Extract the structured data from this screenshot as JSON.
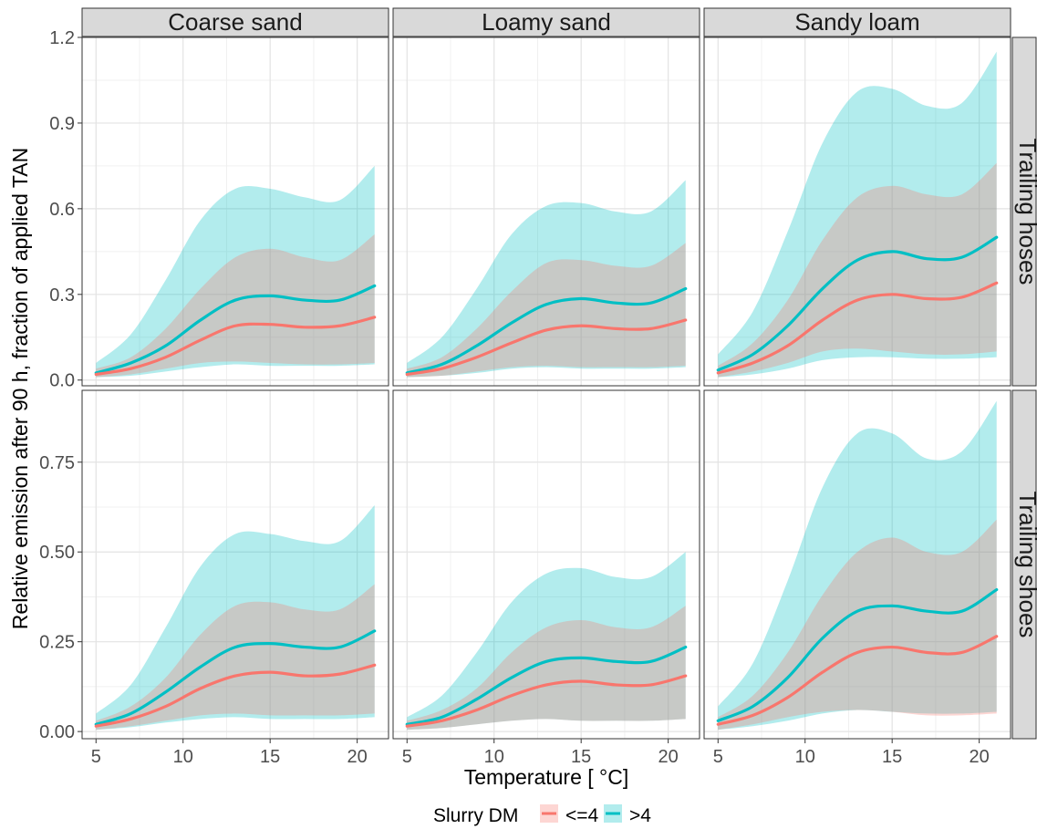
{
  "chart_data": {
    "type": "area",
    "title": "",
    "xlabel": "Temperature [ °C]",
    "ylabel": "Relative emission after 90 h, fraction of applied TAN",
    "x_ticks": [
      5,
      10,
      15,
      20
    ],
    "xlim": [
      4.2,
      21.8
    ],
    "columns": [
      "Coarse sand",
      "Loamy sand",
      "Sandy loam"
    ],
    "rows": [
      {
        "label": "Trailing hoses",
        "ylim": [
          -0.02,
          1.2
        ],
        "y_ticks": [
          0.0,
          0.3,
          0.6,
          0.9,
          1.2
        ],
        "y_tick_labels": [
          "0.0",
          "0.3",
          "0.6",
          "0.9",
          "1.2"
        ]
      },
      {
        "label": "Trailing shoes",
        "ylim": [
          -0.02,
          0.95
        ],
        "y_ticks": [
          0.0,
          0.25,
          0.5,
          0.75
        ],
        "y_tick_labels": [
          "0.00",
          "0.25",
          "0.50",
          "0.75"
        ]
      }
    ],
    "legend": {
      "title": "Slurry DM",
      "position": "bottom",
      "entries": [
        {
          "label": "<=4",
          "line_color": "#F8766D",
          "band_color": "#F8766D"
        },
        {
          "label": ">4",
          "line_color": "#00BFC4",
          "band_color": "#00BFC4"
        }
      ]
    },
    "x": [
      5,
      7,
      9,
      11,
      13,
      15,
      17,
      19,
      21
    ],
    "panels": [
      {
        "row": "Trailing hoses",
        "column": "Coarse sand",
        "series": [
          {
            "name": "<=4",
            "mean": [
              0.02,
              0.04,
              0.08,
              0.14,
              0.19,
              0.195,
              0.185,
              0.19,
              0.22
            ],
            "lower": [
              0.01,
              0.02,
              0.04,
              0.06,
              0.065,
              0.06,
              0.055,
              0.055,
              0.06
            ],
            "upper": [
              0.04,
              0.08,
              0.18,
              0.32,
              0.43,
              0.46,
              0.43,
              0.42,
              0.51
            ]
          },
          {
            "name": ">4",
            "mean": [
              0.025,
              0.06,
              0.12,
              0.21,
              0.28,
              0.295,
              0.28,
              0.28,
              0.33
            ],
            "lower": [
              0.01,
              0.015,
              0.03,
              0.045,
              0.055,
              0.05,
              0.05,
              0.05,
              0.055
            ],
            "upper": [
              0.06,
              0.16,
              0.35,
              0.56,
              0.67,
              0.67,
              0.64,
              0.63,
              0.75
            ]
          }
        ]
      },
      {
        "row": "Trailing hoses",
        "column": "Loamy sand",
        "series": [
          {
            "name": "<=4",
            "mean": [
              0.02,
              0.04,
              0.08,
              0.13,
              0.175,
              0.19,
              0.18,
              0.18,
              0.21
            ],
            "lower": [
              0.01,
              0.015,
              0.03,
              0.045,
              0.05,
              0.045,
              0.045,
              0.045,
              0.05
            ],
            "upper": [
              0.04,
              0.08,
              0.18,
              0.31,
              0.41,
              0.42,
              0.4,
              0.4,
              0.48
            ]
          },
          {
            "name": ">4",
            "mean": [
              0.025,
              0.055,
              0.12,
              0.2,
              0.265,
              0.285,
              0.27,
              0.27,
              0.32
            ],
            "lower": [
              0.01,
              0.015,
              0.025,
              0.04,
              0.045,
              0.04,
              0.04,
              0.04,
              0.045
            ],
            "upper": [
              0.06,
              0.15,
              0.32,
              0.51,
              0.61,
              0.62,
              0.59,
              0.59,
              0.7
            ]
          }
        ]
      },
      {
        "row": "Trailing hoses",
        "column": "Sandy loam",
        "series": [
          {
            "name": "<=4",
            "mean": [
              0.025,
              0.06,
              0.12,
              0.21,
              0.28,
              0.3,
              0.285,
              0.29,
              0.34
            ],
            "lower": [
              0.01,
              0.03,
              0.06,
              0.1,
              0.11,
              0.1,
              0.09,
              0.09,
              0.1
            ],
            "upper": [
              0.05,
              0.13,
              0.28,
              0.49,
              0.64,
              0.68,
              0.65,
              0.65,
              0.76
            ]
          },
          {
            "name": ">4",
            "mean": [
              0.035,
              0.09,
              0.19,
              0.32,
              0.42,
              0.45,
              0.425,
              0.43,
              0.5
            ],
            "lower": [
              0.01,
              0.02,
              0.04,
              0.07,
              0.08,
              0.08,
              0.075,
              0.075,
              0.08
            ],
            "upper": [
              0.09,
              0.24,
              0.52,
              0.83,
              1.01,
              1.02,
              0.96,
              0.97,
              1.15
            ]
          }
        ]
      },
      {
        "row": "Trailing shoes",
        "column": "Coarse sand",
        "series": [
          {
            "name": "<=4",
            "mean": [
              0.015,
              0.035,
              0.07,
              0.12,
              0.155,
              0.165,
              0.155,
              0.16,
              0.185
            ],
            "lower": [
              0.005,
              0.015,
              0.03,
              0.045,
              0.05,
              0.045,
              0.045,
              0.045,
              0.05
            ],
            "upper": [
              0.03,
              0.07,
              0.15,
              0.27,
              0.35,
              0.36,
              0.34,
              0.34,
              0.41
            ]
          },
          {
            "name": ">4",
            "mean": [
              0.02,
              0.05,
              0.11,
              0.18,
              0.235,
              0.245,
              0.235,
              0.235,
              0.28
            ],
            "lower": [
              0.005,
              0.012,
              0.025,
              0.035,
              0.04,
              0.035,
              0.035,
              0.035,
              0.04
            ],
            "upper": [
              0.05,
              0.13,
              0.29,
              0.46,
              0.55,
              0.55,
              0.53,
              0.53,
              0.63
            ]
          }
        ]
      },
      {
        "row": "Trailing shoes",
        "column": "Loamy sand",
        "series": [
          {
            "name": "<=4",
            "mean": [
              0.015,
              0.03,
              0.06,
              0.1,
              0.13,
              0.14,
              0.13,
              0.13,
              0.155
            ],
            "lower": [
              0.005,
              0.01,
              0.02,
              0.03,
              0.035,
              0.03,
              0.03,
              0.03,
              0.035
            ],
            "upper": [
              0.03,
              0.06,
              0.12,
              0.22,
              0.29,
              0.31,
              0.29,
              0.29,
              0.35
            ]
          },
          {
            "name": ">4",
            "mean": [
              0.02,
              0.04,
              0.09,
              0.15,
              0.195,
              0.205,
              0.195,
              0.195,
              0.235
            ],
            "lower": [
              0.005,
              0.01,
              0.02,
              0.03,
              0.035,
              0.03,
              0.03,
              0.03,
              0.035
            ],
            "upper": [
              0.04,
              0.1,
              0.22,
              0.36,
              0.44,
              0.455,
              0.43,
              0.43,
              0.5
            ]
          }
        ]
      },
      {
        "row": "Trailing shoes",
        "column": "Sandy loam",
        "series": [
          {
            "name": "<=4",
            "mean": [
              0.02,
              0.045,
              0.095,
              0.165,
              0.22,
              0.235,
              0.22,
              0.22,
              0.265
            ],
            "lower": [
              0.005,
              0.02,
              0.04,
              0.055,
              0.06,
              0.055,
              0.045,
              0.045,
              0.05
            ],
            "upper": [
              0.04,
              0.1,
              0.22,
              0.38,
              0.5,
              0.54,
              0.5,
              0.5,
              0.59
            ]
          },
          {
            "name": ">4",
            "mean": [
              0.03,
              0.07,
              0.15,
              0.26,
              0.335,
              0.35,
              0.335,
              0.335,
              0.395
            ],
            "lower": [
              0.005,
              0.015,
              0.03,
              0.05,
              0.06,
              0.055,
              0.05,
              0.05,
              0.055
            ],
            "upper": [
              0.07,
              0.19,
              0.42,
              0.68,
              0.83,
              0.83,
              0.76,
              0.78,
              0.92
            ]
          }
        ]
      }
    ]
  }
}
